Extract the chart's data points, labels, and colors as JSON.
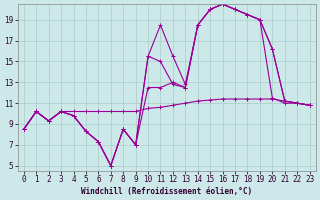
{
  "xlabel": "Windchill (Refroidissement éolien,°C)",
  "bg_color": "#cce8e8",
  "line_color": "#990099",
  "xlim": [
    -0.5,
    23.5
  ],
  "ylim": [
    4.5,
    20.5
  ],
  "xticks": [
    0,
    1,
    2,
    3,
    4,
    5,
    6,
    7,
    8,
    9,
    10,
    11,
    12,
    13,
    14,
    15,
    16,
    17,
    18,
    19,
    20,
    21,
    22,
    23
  ],
  "yticks": [
    5,
    7,
    9,
    11,
    13,
    15,
    17,
    19
  ],
  "grid_color": "#aacccc",
  "spine_color": "#888888",
  "tick_label_size": 5.5,
  "xlabel_size": 5.5,
  "lines": [
    [
      0,
      1,
      2,
      3,
      4,
      5,
      6,
      7,
      8,
      9,
      10,
      11,
      12,
      13,
      14,
      15,
      16,
      17,
      18,
      19,
      20,
      21,
      22,
      23
    ],
    [
      8.5,
      10.2,
      9.3,
      10.2,
      10.2,
      10.2,
      10.2,
      10.2,
      10.2,
      10.2,
      10.5,
      10.6,
      10.8,
      11.0,
      11.2,
      11.3,
      11.4,
      11.4,
      11.4,
      11.4,
      11.4,
      11.2,
      11.0,
      10.8
    ],
    [
      0,
      1,
      2,
      3,
      4,
      5,
      6,
      7,
      8,
      9,
      10,
      11,
      12,
      13,
      14,
      15,
      16,
      17,
      18,
      19,
      20,
      21,
      22,
      23
    ],
    [
      8.5,
      10.2,
      9.3,
      10.2,
      9.8,
      8.3,
      7.3,
      5.0,
      8.5,
      7.0,
      15.5,
      18.5,
      15.5,
      12.8,
      18.5,
      20.0,
      20.5,
      20.0,
      19.5,
      19.0,
      16.2,
      11.2,
      11.0,
      10.8
    ],
    [
      0,
      1,
      2,
      3,
      4,
      5,
      6,
      7,
      8,
      9,
      10,
      11,
      12,
      13,
      14,
      15,
      16,
      17,
      18,
      19,
      20,
      21,
      22,
      23
    ],
    [
      8.5,
      10.2,
      9.3,
      10.2,
      9.8,
      8.3,
      7.3,
      5.0,
      8.5,
      7.0,
      15.5,
      15.0,
      12.8,
      12.5,
      18.5,
      20.0,
      20.5,
      20.0,
      19.5,
      19.0,
      16.2,
      11.2,
      11.0,
      10.8
    ],
    [
      0,
      1,
      2,
      3,
      4,
      5,
      6,
      7,
      8,
      9,
      10,
      11,
      12,
      13,
      14,
      15,
      16,
      17,
      18,
      19,
      20,
      21,
      22,
      23
    ],
    [
      8.5,
      10.2,
      9.3,
      10.2,
      9.8,
      8.3,
      7.3,
      5.0,
      8.5,
      7.0,
      12.5,
      12.5,
      13.0,
      12.5,
      18.5,
      20.0,
      20.5,
      20.0,
      19.5,
      19.0,
      11.5,
      11.0,
      11.0,
      10.8
    ]
  ]
}
